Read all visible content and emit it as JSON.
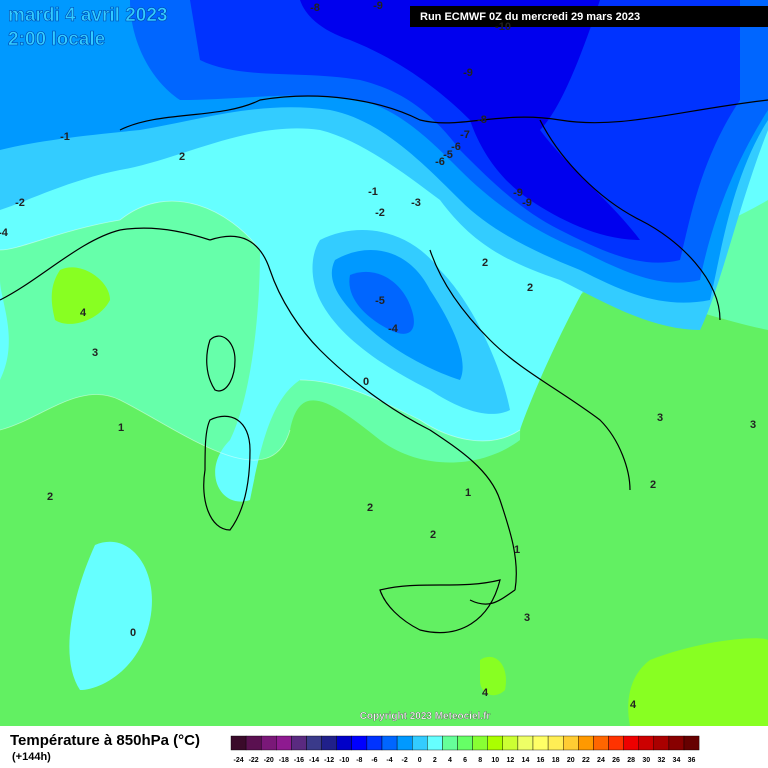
{
  "header": {
    "date": "mardi 4 avril 2023",
    "time": "2:00 locale",
    "run": "Run ECMWF 0Z du mercredi 29 mars 2023"
  },
  "map": {
    "contour_labels": [
      "-8",
      "-9",
      "-10",
      "-9",
      "-8",
      "-7",
      "-6",
      "-5",
      "-6",
      "-9",
      "-9",
      "-1",
      "2",
      "-2",
      "-1",
      "-2",
      "-3",
      "-4",
      "2",
      "2",
      "-5",
      "-4",
      "4",
      "3",
      "0",
      "1",
      "3",
      "3",
      "2",
      "1",
      "2",
      "2",
      "2",
      "1",
      "3",
      "0",
      "4",
      "4"
    ],
    "copyright": "Copyright 2023 Meteociel.fr"
  },
  "footer": {
    "title": "Température à 850hPa (°C)",
    "lead": "(+144h)",
    "scale": {
      "labels": [
        "-24",
        "-22",
        "-20",
        "-18",
        "-16",
        "-14",
        "-12",
        "-10",
        "-8",
        "-6",
        "-4",
        "-2",
        "0",
        "2",
        "4",
        "6",
        "8",
        "10",
        "12",
        "14",
        "16",
        "18",
        "20",
        "22",
        "24",
        "26",
        "28",
        "30",
        "32",
        "34",
        "36"
      ],
      "colors": [
        "#3a0a2a",
        "#5a1050",
        "#7a1878",
        "#8e1a90",
        "#5a2a80",
        "#3a3a8a",
        "#20208a",
        "#0000c8",
        "#0000ff",
        "#0033ff",
        "#0066ff",
        "#0099ff",
        "#33ccff",
        "#66ffff",
        "#66ff99",
        "#66ff66",
        "#88ff33",
        "#aaff00",
        "#ccff33",
        "#eeff66",
        "#ffff66",
        "#ffee55",
        "#ffcc33",
        "#ff9900",
        "#ff6600",
        "#ff3300",
        "#ee0000",
        "#cc0000",
        "#aa0000",
        "#880000",
        "#660000"
      ]
    }
  }
}
